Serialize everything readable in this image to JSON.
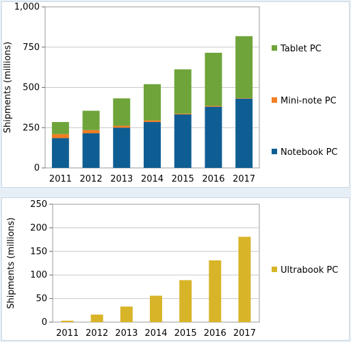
{
  "colors": {
    "tablet": "#6ea43a",
    "mininote": "#f07e22",
    "notebook": "#0f5e93",
    "ultrabook": "#d8b428"
  },
  "chart_data": [
    {
      "type": "bar",
      "stacked": true,
      "categories": [
        "2011",
        "2012",
        "2013",
        "2014",
        "2015",
        "2016",
        "2017"
      ],
      "series": [
        {
          "name": "Notebook PC",
          "values": [
            185,
            215,
            250,
            285,
            332,
            380,
            430
          ]
        },
        {
          "name": "Mini-note PC",
          "values": [
            25,
            20,
            12,
            10,
            5,
            5,
            3
          ]
        },
        {
          "name": "Tablet PC",
          "values": [
            75,
            120,
            170,
            225,
            275,
            330,
            385
          ]
        }
      ],
      "ylabel": "Shipments (millions)",
      "ylim": [
        0,
        1000
      ],
      "yticks": [
        "0",
        "250",
        "500",
        "750",
        "1,000"
      ],
      "legend_position": "right",
      "grid": true
    },
    {
      "type": "bar",
      "categories": [
        "2011",
        "2012",
        "2013",
        "2014",
        "2015",
        "2016",
        "2017"
      ],
      "series": [
        {
          "name": "Ultrabook PC",
          "values": [
            3,
            16,
            33,
            56,
            89,
            131,
            181
          ]
        }
      ],
      "ylabel": "Shipments (millions)",
      "ylim": [
        0,
        250
      ],
      "yticks": [
        "0",
        "50",
        "100",
        "150",
        "200",
        "250"
      ],
      "legend_position": "right",
      "grid": true
    }
  ]
}
